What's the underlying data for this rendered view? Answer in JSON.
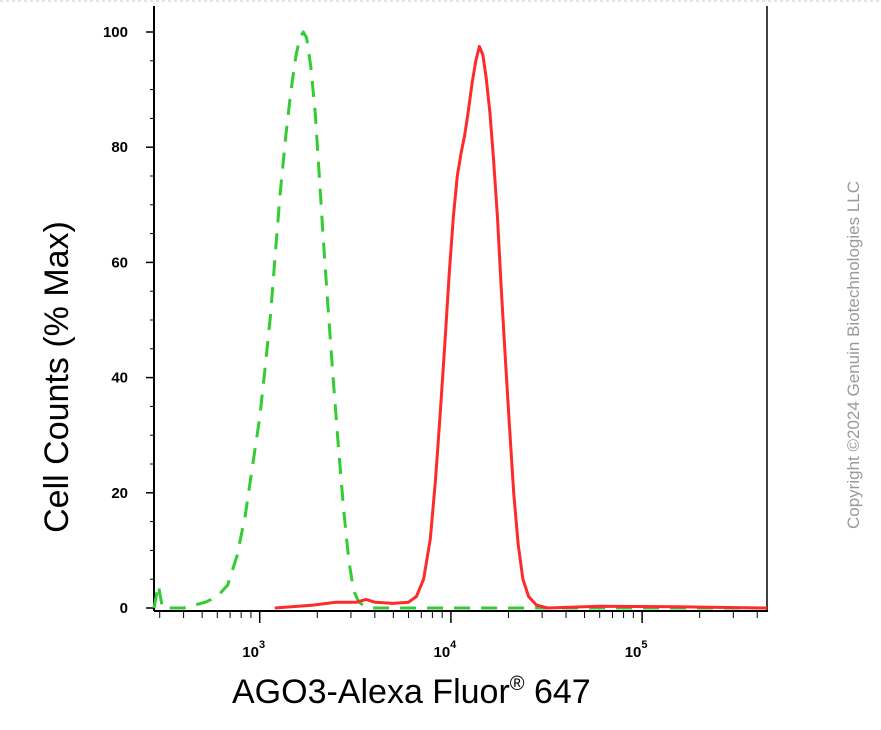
{
  "chart_data": {
    "type": "line",
    "xlabel": "AGO3-Alexa Fluor",
    "xlabel_sup": "®",
    "xlabel_suffix": " 647",
    "ylabel": "Cell Counts (% Max)",
    "x_scale": "log",
    "xlim": [
      280,
      450000
    ],
    "ylim": [
      0,
      100
    ],
    "y_ticks": [
      "0",
      "20",
      "40",
      "60",
      "80",
      "100"
    ],
    "y_tick_values": [
      0,
      20,
      40,
      60,
      80,
      100
    ],
    "x_ticks": [
      {
        "base": "10",
        "exp": "3",
        "value": 1000
      },
      {
        "base": "10",
        "exp": "4",
        "value": 10000
      },
      {
        "base": "10",
        "exp": "5",
        "value": 100000
      }
    ],
    "grid": false,
    "series": [
      {
        "color": "#33cc33",
        "style": "dashed",
        "points": [
          [
            280,
            0
          ],
          [
            295,
            4
          ],
          [
            310,
            0
          ],
          [
            400,
            0
          ],
          [
            520,
            1
          ],
          [
            600,
            2
          ],
          [
            680,
            4
          ],
          [
            760,
            9
          ],
          [
            840,
            16
          ],
          [
            920,
            25
          ],
          [
            1000,
            33
          ],
          [
            1070,
            42
          ],
          [
            1140,
            51
          ],
          [
            1210,
            62
          ],
          [
            1280,
            72
          ],
          [
            1370,
            82
          ],
          [
            1460,
            90
          ],
          [
            1550,
            96
          ],
          [
            1620,
            99
          ],
          [
            1690,
            100
          ],
          [
            1760,
            99
          ],
          [
            1850,
            94
          ],
          [
            1950,
            86
          ],
          [
            2050,
            75
          ],
          [
            2150,
            64
          ],
          [
            2280,
            52
          ],
          [
            2420,
            40
          ],
          [
            2580,
            28
          ],
          [
            2750,
            17
          ],
          [
            2930,
            8
          ],
          [
            3100,
            3
          ],
          [
            3300,
            1
          ],
          [
            3700,
            0
          ],
          [
            10000,
            0
          ],
          [
            20000,
            0
          ],
          [
            450000,
            0
          ]
        ]
      },
      {
        "color": "#ff2a2a",
        "style": "solid",
        "points": [
          [
            1200,
            0
          ],
          [
            1900,
            0.5
          ],
          [
            2500,
            1
          ],
          [
            3200,
            1
          ],
          [
            3600,
            1.5
          ],
          [
            4000,
            1
          ],
          [
            5000,
            0.8
          ],
          [
            6000,
            1
          ],
          [
            6600,
            2
          ],
          [
            7200,
            5
          ],
          [
            7800,
            12
          ],
          [
            8300,
            22
          ],
          [
            8800,
            34
          ],
          [
            9300,
            46
          ],
          [
            9800,
            58
          ],
          [
            10300,
            68
          ],
          [
            10800,
            75
          ],
          [
            11300,
            79
          ],
          [
            11800,
            82
          ],
          [
            12300,
            86
          ],
          [
            12900,
            91
          ],
          [
            13500,
            95
          ],
          [
            14100,
            97.5
          ],
          [
            14700,
            96
          ],
          [
            15300,
            92
          ],
          [
            16000,
            86
          ],
          [
            16700,
            78
          ],
          [
            17500,
            68
          ],
          [
            18300,
            56
          ],
          [
            19200,
            44
          ],
          [
            20200,
            32
          ],
          [
            21300,
            20
          ],
          [
            22500,
            11
          ],
          [
            23800,
            5
          ],
          [
            25500,
            2
          ],
          [
            28000,
            0.5
          ],
          [
            32000,
            0
          ],
          [
            60000,
            0.3
          ],
          [
            150000,
            0.2
          ],
          [
            450000,
            0
          ]
        ]
      }
    ],
    "watermark": "Copyright ©2024 Genuin Biotechnologies LLC"
  }
}
